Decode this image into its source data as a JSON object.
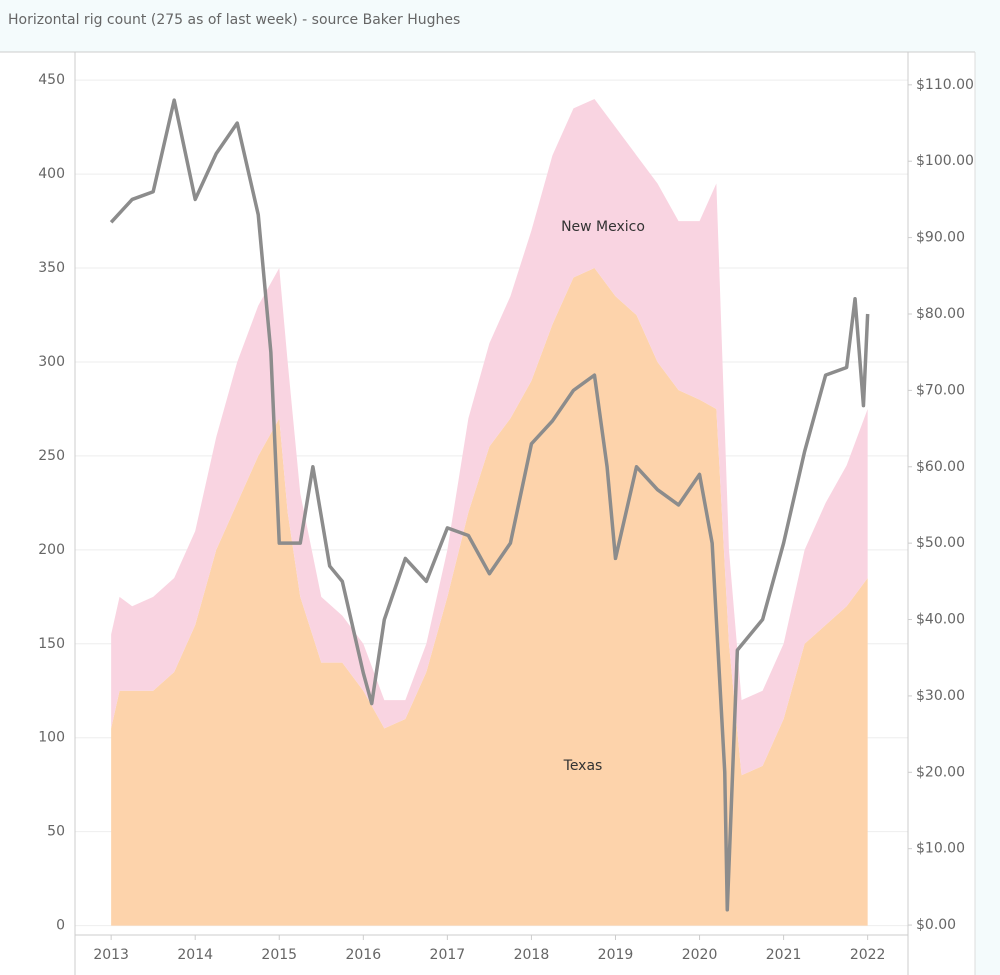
{
  "chart_data": {
    "type": "stacked_area_line",
    "title": "Horizontal rig count (275 as of last week) - source Baker Hughes",
    "xlim": [
      2012.57,
      2022.48
    ],
    "xticks": [
      2013,
      2014,
      2015,
      2016,
      2017,
      2018,
      2019,
      2020,
      2021,
      2022
    ],
    "ylim": [
      -5,
      465
    ],
    "yticks": [
      0,
      50,
      100,
      150,
      200,
      250,
      300,
      350,
      400,
      450
    ],
    "y2lim": [
      -1.3,
      114.3
    ],
    "y2ticks": [
      {
        "value": 0,
        "label": "$0.00"
      },
      {
        "value": 10,
        "label": "$10.00"
      },
      {
        "value": 20,
        "label": "$20.00"
      },
      {
        "value": 30,
        "label": "$30.00"
      },
      {
        "value": 40,
        "label": "$40.00"
      },
      {
        "value": 50,
        "label": "$50.00"
      },
      {
        "value": 60,
        "label": "$60.00"
      },
      {
        "value": 70,
        "label": "$70.00"
      },
      {
        "value": 80,
        "label": "$80.00"
      },
      {
        "value": 90,
        "label": "$90.00"
      },
      {
        "value": 100,
        "label": "$100.00"
      },
      {
        "value": 110,
        "label": "$110.00"
      }
    ],
    "grid": true,
    "series": [
      {
        "name": "Texas",
        "kind": "area",
        "color": "#fdd3ab",
        "x": [
          2013.0,
          2013.1,
          2013.25,
          2013.5,
          2013.75,
          2014.0,
          2014.25,
          2014.5,
          2014.75,
          2015.0,
          2015.1,
          2015.25,
          2015.5,
          2015.75,
          2016.0,
          2016.25,
          2016.5,
          2016.75,
          2017.0,
          2017.25,
          2017.5,
          2017.75,
          2018.0,
          2018.25,
          2018.5,
          2018.75,
          2019.0,
          2019.25,
          2019.5,
          2019.75,
          2020.0,
          2020.2,
          2020.35,
          2020.5,
          2020.75,
          2021.0,
          2021.25,
          2021.5,
          2021.75,
          2022.0
        ],
        "values": [
          105,
          125,
          125,
          125,
          135,
          160,
          200,
          225,
          250,
          270,
          220,
          175,
          140,
          140,
          125,
          105,
          110,
          135,
          175,
          220,
          255,
          270,
          290,
          320,
          345,
          350,
          335,
          325,
          300,
          285,
          280,
          275,
          150,
          80,
          85,
          110,
          150,
          160,
          170,
          185
        ]
      },
      {
        "name": "New Mexico",
        "kind": "area",
        "color": "#f9d4e1",
        "x": [
          2013.0,
          2013.1,
          2013.25,
          2013.5,
          2013.75,
          2014.0,
          2014.25,
          2014.5,
          2014.75,
          2015.0,
          2015.1,
          2015.25,
          2015.5,
          2015.75,
          2016.0,
          2016.25,
          2016.5,
          2016.75,
          2017.0,
          2017.25,
          2017.5,
          2017.75,
          2018.0,
          2018.25,
          2018.5,
          2018.75,
          2019.0,
          2019.25,
          2019.5,
          2019.75,
          2020.0,
          2020.2,
          2020.35,
          2020.5,
          2020.75,
          2021.0,
          2021.25,
          2021.5,
          2021.75,
          2022.0
        ],
        "values": [
          50,
          50,
          45,
          50,
          50,
          50,
          60,
          75,
          80,
          80,
          80,
          55,
          35,
          25,
          25,
          15,
          10,
          15,
          25,
          50,
          55,
          65,
          80,
          90,
          90,
          90,
          90,
          85,
          95,
          90,
          95,
          120,
          50,
          40,
          40,
          40,
          50,
          65,
          75,
          90
        ]
      },
      {
        "kind": "line",
        "axis": "y2",
        "color": "#8c8c8c",
        "x": [
          2013.0,
          2013.25,
          2013.5,
          2013.75,
          2014.0,
          2014.25,
          2014.5,
          2014.75,
          2014.9,
          2015.0,
          2015.25,
          2015.4,
          2015.6,
          2015.75,
          2016.0,
          2016.1,
          2016.25,
          2016.5,
          2016.75,
          2017.0,
          2017.25,
          2017.5,
          2017.75,
          2018.0,
          2018.25,
          2018.5,
          2018.75,
          2018.9,
          2019.0,
          2019.25,
          2019.5,
          2019.75,
          2020.0,
          2020.15,
          2020.3,
          2020.33,
          2020.45,
          2020.75,
          2021.0,
          2021.25,
          2021.5,
          2021.75,
          2021.85,
          2021.95,
          2022.0
        ],
        "values": [
          92,
          95,
          96,
          108,
          95,
          101,
          105,
          93,
          75,
          50,
          50,
          60,
          47,
          45,
          33,
          29,
          40,
          48,
          45,
          52,
          51,
          46,
          50,
          63,
          66,
          70,
          72,
          60,
          48,
          60,
          57,
          55,
          59,
          50,
          20,
          2,
          36,
          40,
          50,
          62,
          72,
          73,
          82,
          68,
          80
        ]
      }
    ]
  }
}
